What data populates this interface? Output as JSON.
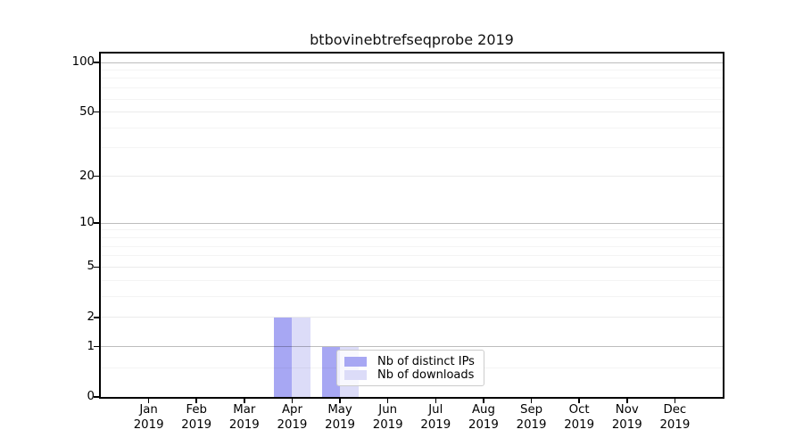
{
  "title": "btbovinebtrefseqprobe 2019",
  "y_axis": {
    "tick_labels": [
      "0",
      "1",
      "2",
      "5",
      "10",
      "20",
      "50",
      "100"
    ]
  },
  "x_axis": {
    "year": "2019",
    "months": [
      "Jan",
      "Feb",
      "Mar",
      "Apr",
      "May",
      "Jun",
      "Jul",
      "Aug",
      "Sep",
      "Oct",
      "Nov",
      "Dec"
    ]
  },
  "legend": {
    "items": [
      {
        "label": "Nb of distinct IPs",
        "color": "#a7a7f3"
      },
      {
        "label": "Nb of downloads",
        "color": "#dcdcf8"
      }
    ]
  },
  "colors": {
    "distinct_ips": "#a7a7f3",
    "downloads": "#dcdcf8",
    "axis": "#000000",
    "grid_strong": "rgba(0,0,0,0.26)",
    "grid_major_weak": "rgba(0,0,0,0.08)",
    "grid_minor": "rgba(0,0,0,0.045)",
    "background": "#ffffff"
  },
  "chart_data": {
    "type": "bar",
    "title": "btbovinebtrefseqprobe 2019",
    "categories": [
      "Jan 2019",
      "Feb 2019",
      "Mar 2019",
      "Apr 2019",
      "May 2019",
      "Jun 2019",
      "Jul 2019",
      "Aug 2019",
      "Sep 2019",
      "Oct 2019",
      "Nov 2019",
      "Dec 2019"
    ],
    "series": [
      {
        "name": "Nb of distinct IPs",
        "color": "#a7a7f3",
        "values": [
          0,
          0,
          0,
          2,
          1,
          0,
          0,
          0,
          0,
          0,
          0,
          0
        ]
      },
      {
        "name": "Nb of downloads",
        "color": "#dcdcf8",
        "values": [
          0,
          0,
          0,
          2,
          1,
          0,
          0,
          0,
          0,
          0,
          0,
          0
        ]
      }
    ],
    "xlabel": "",
    "ylabel": "",
    "yscale": "log1p",
    "yticks": [
      0,
      1,
      2,
      5,
      10,
      20,
      50,
      100
    ],
    "yticks_strong_grid": [
      1,
      10,
      100
    ],
    "yticks_minor": [
      0.5,
      3,
      4,
      6,
      7,
      8,
      9,
      30,
      40,
      60,
      70,
      80,
      90
    ],
    "ylim": [
      0,
      113
    ],
    "grid": "on",
    "legend_position": "lower center-right inside plot"
  }
}
